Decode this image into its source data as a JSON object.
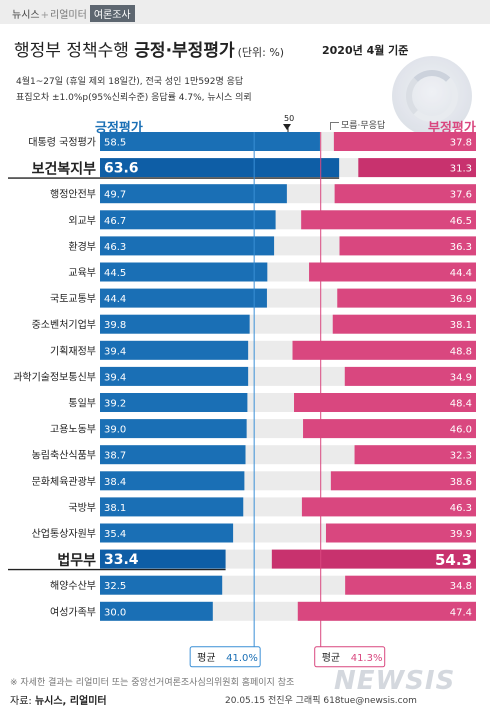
{
  "header": {
    "brand_main": "뉴시스",
    "brand_sep": "+",
    "brand_partner": "리얼미터",
    "brand_tag": "여론조사"
  },
  "title": {
    "prefix": "행정부 정책수행 ",
    "strong": "긍정·부정평가",
    "unit": "(단위: %)",
    "basis": "2020년 4월 기준"
  },
  "survey_note": {
    "line1": "4월1~27일 (휴일 제외 18일간), 전국 성인 1만592명 응답",
    "line2": "표집오차 ±1.0%p(95%신뢰수준) 응답률 4.7%, 뉴시스 의뢰"
  },
  "legend": {
    "positive": "긍정평가",
    "negative": "부정평가",
    "neutral": "모름·무응답",
    "fifty": "50"
  },
  "colors": {
    "positive": "#1a6fb5",
    "negative": "#d9477f",
    "positive_highlight": "#0e5ea6",
    "negative_highlight": "#c8326e"
  },
  "chart_data": {
    "type": "bar",
    "categories": [
      "대통령 국정평가",
      "보건복지부",
      "행정안전부",
      "외교부",
      "환경부",
      "교육부",
      "국토교통부",
      "중소벤처기업부",
      "기획재정부",
      "과학기술정보통신부",
      "통일부",
      "고용노동부",
      "농림축산식품부",
      "문화체육관광부",
      "국방부",
      "산업통상자원부",
      "법무부",
      "해양수산부",
      "여성가족부"
    ],
    "series": [
      {
        "name": "긍정평가",
        "values": [
          58.5,
          63.6,
          49.7,
          46.7,
          46.3,
          44.5,
          44.4,
          39.8,
          39.4,
          39.4,
          39.2,
          39.0,
          38.7,
          38.4,
          38.1,
          35.4,
          33.4,
          32.5,
          30.0
        ]
      },
      {
        "name": "부정평가",
        "values": [
          37.8,
          31.3,
          37.6,
          46.5,
          36.3,
          44.4,
          36.9,
          38.1,
          48.8,
          34.9,
          48.4,
          46.0,
          32.3,
          38.6,
          46.3,
          39.9,
          54.3,
          34.8,
          47.4
        ]
      }
    ],
    "highlight": [
      "보건복지부",
      "법무부"
    ],
    "averages": {
      "positive_label": "평균",
      "positive_value": "41.0%",
      "negative_label": "평균",
      "negative_value": "41.3%"
    },
    "xlim": [
      0,
      100
    ]
  },
  "footer": {
    "footnote": "※ 자세한 결과는 리얼미터 또는 중앙선거여론조사심의위원회 홈페이지 참조",
    "source_label": "자료: ",
    "source": "뉴시스, 리얼미터",
    "credit": "20.05.15 전진우 그래픽 618tue@newsis.com",
    "watermark": "NEWSIS"
  }
}
